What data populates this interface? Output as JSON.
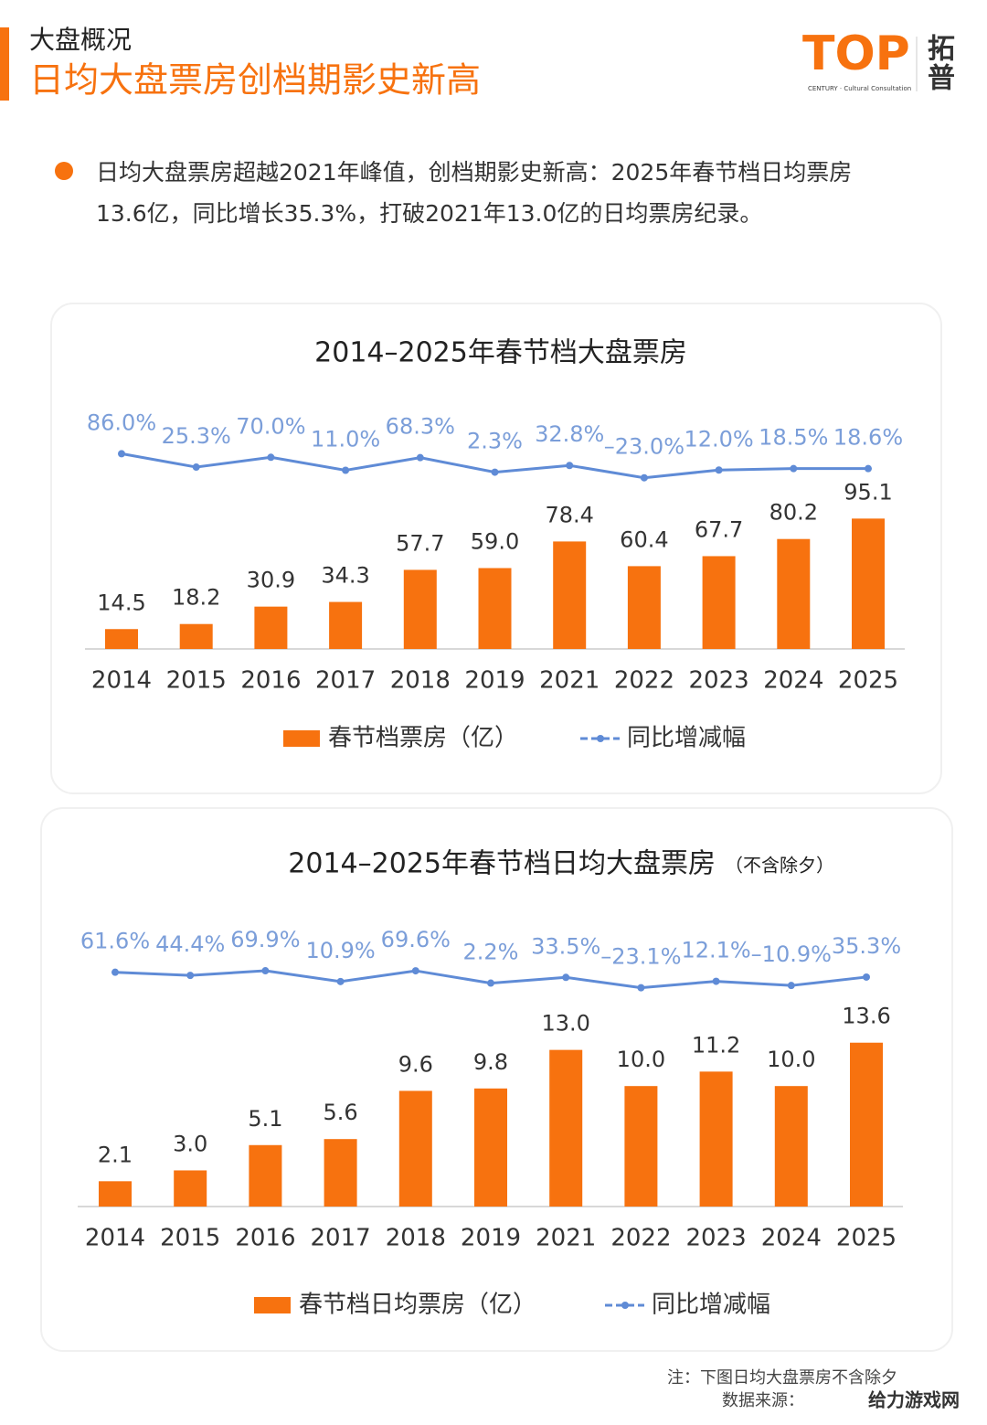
{
  "header": {
    "section": "大盘概况",
    "title": "日均大盘票房创档期影史新高",
    "logo": "TOP",
    "logo_cn_1": "拓",
    "logo_cn_2": "普",
    "logo_sub": "CENTURY · Cultural Consultation"
  },
  "bullet": {
    "line1": "日均大盘票房超越2021年峰值，创档期影史新高：2025年春节档日均票房",
    "line2": "13.6亿，同比增长35.3%，打破2021年13.0亿的日均票房纪录。"
  },
  "chart_data": [
    {
      "type": "bar",
      "title": "2014–2025年春节档大盘票房",
      "categories": [
        "2014",
        "2015",
        "2016",
        "2017",
        "2018",
        "2019",
        "2021",
        "2022",
        "2023",
        "2024",
        "2025"
      ],
      "ylim": [
        0,
        180
      ],
      "y2lim": [
        -800,
        320
      ],
      "series": [
        {
          "name": "春节档票房（亿）",
          "type": "bar",
          "color": "#f7720f",
          "values": [
            14.5,
            18.2,
            30.9,
            34.3,
            57.7,
            59.0,
            78.4,
            60.4,
            67.7,
            80.2,
            95.1
          ],
          "value_labels": [
            "14.5",
            "18.2",
            "30.9",
            "34.3",
            "57.7",
            "59.0",
            "78.4",
            "60.4",
            "67.7",
            "80.2",
            "95.1"
          ]
        },
        {
          "name": "同比增减幅",
          "type": "line",
          "axis": "y2",
          "color": "#5f8bd6",
          "values": [
            86.0,
            25.3,
            70.0,
            11.0,
            68.3,
            2.3,
            32.8,
            -23.0,
            12.0,
            18.5,
            18.6
          ],
          "value_labels": [
            "86.0%",
            "25.3%",
            "70.0%",
            "11.0%",
            "68.3%",
            "2.3%",
            "32.8%",
            "–23.0%",
            "12.0%",
            "18.5%",
            "18.6%"
          ]
        }
      ]
    },
    {
      "type": "bar",
      "title": "2014–2025年春节档日均大盘票房",
      "subtitle": "（不含除夕）",
      "categories": [
        "2014",
        "2015",
        "2016",
        "2017",
        "2018",
        "2019",
        "2021",
        "2022",
        "2023",
        "2024",
        "2025"
      ],
      "ylim": [
        0,
        22
      ],
      "y2lim": [
        -1220,
        230
      ],
      "series": [
        {
          "name": "春节档日均票房（亿）",
          "type": "bar",
          "color": "#f7720f",
          "values": [
            2.1,
            3.0,
            5.1,
            5.6,
            9.6,
            9.8,
            13.0,
            10.0,
            11.2,
            10.0,
            13.6
          ],
          "value_labels": [
            "2.1",
            "3.0",
            "5.1",
            "5.6",
            "9.6",
            "9.8",
            "13.0",
            "10.0",
            "11.2",
            "10.0",
            "13.6"
          ]
        },
        {
          "name": "同比增减幅",
          "type": "line",
          "axis": "y2",
          "color": "#5f8bd6",
          "values": [
            61.6,
            44.4,
            69.9,
            10.9,
            69.6,
            2.2,
            33.5,
            -23.1,
            12.1,
            -10.9,
            35.3
          ],
          "value_labels": [
            "61.6%",
            "44.4%",
            "69.9%",
            "10.9%",
            "69.6%",
            "2.2%",
            "33.5%",
            "–23.1%",
            "12.1%",
            "–10.9%",
            "35.3%"
          ]
        }
      ]
    }
  ],
  "note": {
    "line1": "注：下图日均大盘票房不含除夕",
    "line2": "数据来源：",
    "watermark": "给力游戏网"
  }
}
